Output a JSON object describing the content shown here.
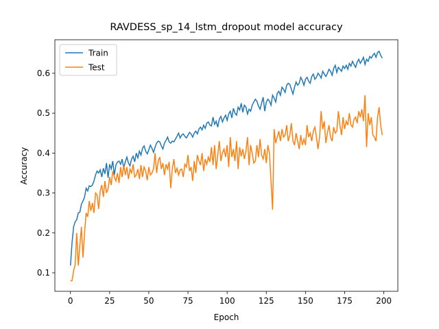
{
  "chart_data": {
    "type": "line",
    "title": "RAVDESS_sp_14_lstm_dropout model accuracy",
    "x_label": "Epoch",
    "y_label": "Accuracy",
    "legend": "upper left",
    "xlim": [
      -9.95,
      208.95
    ],
    "ylim": [
      0.0536,
      0.684
    ],
    "xticks": [
      0,
      25,
      50,
      75,
      100,
      125,
      150,
      175,
      200
    ],
    "yticks": [
      0.1,
      0.2,
      0.3,
      0.4,
      0.5,
      0.6
    ],
    "x": [
      0,
      1,
      2,
      3,
      4,
      5,
      6,
      7,
      8,
      9,
      10,
      11,
      12,
      13,
      14,
      15,
      16,
      17,
      18,
      19,
      20,
      21,
      22,
      23,
      24,
      25,
      26,
      27,
      28,
      29,
      30,
      31,
      32,
      33,
      34,
      35,
      36,
      37,
      38,
      39,
      40,
      41,
      42,
      43,
      44,
      45,
      46,
      47,
      48,
      49,
      50,
      51,
      52,
      53,
      54,
      55,
      56,
      57,
      58,
      59,
      60,
      61,
      62,
      63,
      64,
      65,
      66,
      67,
      68,
      69,
      70,
      71,
      72,
      73,
      74,
      75,
      76,
      77,
      78,
      79,
      80,
      81,
      82,
      83,
      84,
      85,
      86,
      87,
      88,
      89,
      90,
      91,
      92,
      93,
      94,
      95,
      96,
      97,
      98,
      99,
      100,
      101,
      102,
      103,
      104,
      105,
      106,
      107,
      108,
      109,
      110,
      111,
      112,
      113,
      114,
      115,
      116,
      117,
      118,
      119,
      120,
      121,
      122,
      123,
      124,
      125,
      126,
      127,
      128,
      129,
      130,
      131,
      132,
      133,
      134,
      135,
      136,
      137,
      138,
      139,
      140,
      141,
      142,
      143,
      144,
      145,
      146,
      147,
      148,
      149,
      150,
      151,
      152,
      153,
      154,
      155,
      156,
      157,
      158,
      159,
      160,
      161,
      162,
      163,
      164,
      165,
      166,
      167,
      168,
      169,
      170,
      171,
      172,
      173,
      174,
      175,
      176,
      177,
      178,
      179,
      180,
      181,
      182,
      183,
      184,
      185,
      186,
      187,
      188,
      189,
      190,
      191,
      192,
      193,
      194,
      195,
      196,
      197,
      198,
      199
    ],
    "series": [
      {
        "name": "Train",
        "color": "#1f77b4",
        "values": [
          0.118,
          0.175,
          0.215,
          0.228,
          0.233,
          0.25,
          0.252,
          0.272,
          0.28,
          0.29,
          0.312,
          0.305,
          0.318,
          0.316,
          0.32,
          0.33,
          0.345,
          0.355,
          0.35,
          0.358,
          0.34,
          0.362,
          0.348,
          0.375,
          0.338,
          0.372,
          0.36,
          0.38,
          0.345,
          0.37,
          0.378,
          0.38,
          0.372,
          0.385,
          0.362,
          0.378,
          0.39,
          0.375,
          0.368,
          0.385,
          0.392,
          0.378,
          0.4,
          0.388,
          0.405,
          0.395,
          0.412,
          0.418,
          0.405,
          0.398,
          0.408,
          0.42,
          0.412,
          0.402,
          0.415,
          0.425,
          0.43,
          0.428,
          0.418,
          0.41,
          0.425,
          0.432,
          0.44,
          0.428,
          0.425,
          0.43,
          0.428,
          0.435,
          0.442,
          0.45,
          0.438,
          0.445,
          0.448,
          0.442,
          0.438,
          0.445,
          0.452,
          0.448,
          0.44,
          0.45,
          0.455,
          0.448,
          0.46,
          0.465,
          0.458,
          0.47,
          0.462,
          0.475,
          0.478,
          0.47,
          0.468,
          0.49,
          0.472,
          0.48,
          0.465,
          0.485,
          0.492,
          0.478,
          0.488,
          0.495,
          0.482,
          0.498,
          0.505,
          0.488,
          0.512,
          0.5,
          0.495,
          0.515,
          0.508,
          0.525,
          0.502,
          0.52,
          0.515,
          0.498,
          0.51,
          0.505,
          0.52,
          0.528,
          0.535,
          0.53,
          0.518,
          0.51,
          0.525,
          0.54,
          0.505,
          0.528,
          0.535,
          0.53,
          0.52,
          0.545,
          0.538,
          0.528,
          0.55,
          0.555,
          0.545,
          0.565,
          0.56,
          0.552,
          0.57,
          0.575,
          0.572,
          0.56,
          0.548,
          0.565,
          0.578,
          0.57,
          0.575,
          0.59,
          0.582,
          0.57,
          0.585,
          0.59,
          0.58,
          0.575,
          0.592,
          0.598,
          0.585,
          0.59,
          0.6,
          0.595,
          0.588,
          0.605,
          0.598,
          0.592,
          0.6,
          0.61,
          0.605,
          0.595,
          0.612,
          0.62,
          0.602,
          0.615,
          0.61,
          0.605,
          0.618,
          0.612,
          0.62,
          0.61,
          0.625,
          0.618,
          0.63,
          0.622,
          0.615,
          0.628,
          0.635,
          0.625,
          0.632,
          0.64,
          0.622,
          0.635,
          0.63,
          0.642,
          0.638,
          0.645,
          0.65,
          0.64,
          0.652,
          0.655,
          0.645,
          0.638
        ]
      },
      {
        "name": "Test",
        "color": "#ff7f0e",
        "values": [
          0.08,
          0.08,
          0.105,
          0.12,
          0.2,
          0.118,
          0.17,
          0.215,
          0.138,
          0.2,
          0.25,
          0.24,
          0.28,
          0.255,
          0.275,
          0.25,
          0.3,
          0.295,
          0.26,
          0.305,
          0.32,
          0.29,
          0.33,
          0.3,
          0.31,
          0.34,
          0.32,
          0.355,
          0.34,
          0.33,
          0.35,
          0.325,
          0.365,
          0.34,
          0.37,
          0.345,
          0.365,
          0.335,
          0.36,
          0.35,
          0.372,
          0.34,
          0.345,
          0.36,
          0.335,
          0.37,
          0.34,
          0.365,
          0.355,
          0.332,
          0.365,
          0.345,
          0.35,
          0.36,
          0.4,
          0.35,
          0.38,
          0.39,
          0.36,
          0.375,
          0.345,
          0.372,
          0.36,
          0.378,
          0.312,
          0.36,
          0.385,
          0.35,
          0.362,
          0.345,
          0.358,
          0.36,
          0.34,
          0.372,
          0.365,
          0.395,
          0.355,
          0.365,
          0.33,
          0.38,
          0.35,
          0.395,
          0.38,
          0.37,
          0.4,
          0.355,
          0.385,
          0.372,
          0.39,
          0.378,
          0.415,
          0.37,
          0.42,
          0.36,
          0.395,
          0.43,
          0.38,
          0.4,
          0.41,
          0.39,
          0.42,
          0.365,
          0.44,
          0.39,
          0.41,
          0.38,
          0.43,
          0.36,
          0.415,
          0.392,
          0.41,
          0.385,
          0.405,
          0.44,
          0.37,
          0.42,
          0.4,
          0.375,
          0.38,
          0.42,
          0.39,
          0.435,
          0.395,
          0.385,
          0.41,
          0.375,
          0.42,
          0.4,
          0.33,
          0.258,
          0.46,
          0.425,
          0.44,
          0.455,
          0.43,
          0.46,
          0.44,
          0.445,
          0.47,
          0.43,
          0.445,
          0.475,
          0.43,
          0.42,
          0.45,
          0.43,
          0.41,
          0.445,
          0.42,
          0.435,
          0.42,
          0.47,
          0.44,
          0.45,
          0.43,
          0.455,
          0.465,
          0.44,
          0.41,
          0.44,
          0.505,
          0.46,
          0.48,
          0.425,
          0.45,
          0.47,
          0.44,
          0.43,
          0.465,
          0.45,
          0.455,
          0.505,
          0.47,
          0.445,
          0.49,
          0.46,
          0.48,
          0.47,
          0.5,
          0.47,
          0.465,
          0.485,
          0.49,
          0.475,
          0.505,
          0.49,
          0.51,
          0.48,
          0.545,
          0.415,
          0.5,
          0.47,
          0.49,
          0.445,
          0.44,
          0.43,
          0.49,
          0.515,
          0.47,
          0.445
        ]
      }
    ]
  }
}
